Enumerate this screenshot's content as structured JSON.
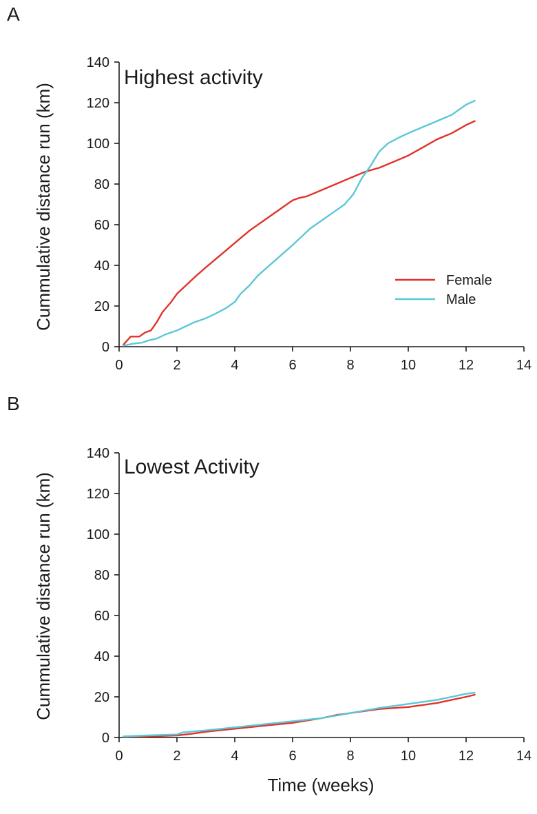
{
  "figure": {
    "xlabel": "Time (weeks)"
  },
  "chart_data": [
    {
      "type": "line",
      "panel": "A",
      "title": "Highest activity",
      "xlabel": "Time (weeks)",
      "ylabel": "Cummulative distance run (km)",
      "xlim": [
        0,
        14
      ],
      "ylim": [
        0,
        140
      ],
      "xticks": [
        0,
        2,
        4,
        6,
        8,
        10,
        12,
        14
      ],
      "yticks": [
        0,
        20,
        40,
        60,
        80,
        100,
        120,
        140
      ],
      "legend_position": "right",
      "grid": false,
      "series": [
        {
          "name": "Female",
          "color": "#e0332a",
          "points": [
            [
              0.15,
              1
            ],
            [
              0.4,
              5
            ],
            [
              0.7,
              5
            ],
            [
              0.9,
              7
            ],
            [
              1.1,
              8
            ],
            [
              1.3,
              12
            ],
            [
              1.5,
              17
            ],
            [
              1.8,
              22
            ],
            [
              2.0,
              26
            ],
            [
              2.3,
              30
            ],
            [
              2.6,
              34
            ],
            [
              3.0,
              39
            ],
            [
              3.5,
              45
            ],
            [
              4.0,
              51
            ],
            [
              4.5,
              57
            ],
            [
              5.0,
              62
            ],
            [
              5.5,
              67
            ],
            [
              6.0,
              72
            ],
            [
              6.2,
              73
            ],
            [
              6.5,
              74
            ],
            [
              7.0,
              77
            ],
            [
              7.5,
              80
            ],
            [
              8.0,
              83
            ],
            [
              8.5,
              86
            ],
            [
              9.0,
              88
            ],
            [
              9.5,
              91
            ],
            [
              10.0,
              94
            ],
            [
              10.5,
              98
            ],
            [
              11.0,
              102
            ],
            [
              11.5,
              105
            ],
            [
              12.0,
              109
            ],
            [
              12.3,
              111
            ]
          ]
        },
        {
          "name": "Male",
          "color": "#5bc7d6",
          "points": [
            [
              0.15,
              0.5
            ],
            [
              0.5,
              1.5
            ],
            [
              0.8,
              2
            ],
            [
              1.0,
              3
            ],
            [
              1.3,
              4
            ],
            [
              1.6,
              6
            ],
            [
              2.0,
              8
            ],
            [
              2.3,
              10
            ],
            [
              2.6,
              12
            ],
            [
              3.0,
              14
            ],
            [
              3.3,
              16
            ],
            [
              3.7,
              19
            ],
            [
              4.0,
              22
            ],
            [
              4.2,
              26
            ],
            [
              4.5,
              30
            ],
            [
              4.8,
              35
            ],
            [
              5.2,
              40
            ],
            [
              5.6,
              45
            ],
            [
              6.0,
              50
            ],
            [
              6.3,
              54
            ],
            [
              6.6,
              58
            ],
            [
              7.0,
              62
            ],
            [
              7.4,
              66
            ],
            [
              7.8,
              70
            ],
            [
              8.1,
              75
            ],
            [
              8.4,
              83
            ],
            [
              8.7,
              89
            ],
            [
              9.0,
              96
            ],
            [
              9.3,
              100
            ],
            [
              9.7,
              103
            ],
            [
              10.0,
              105
            ],
            [
              10.5,
              108
            ],
            [
              11.0,
              111
            ],
            [
              11.5,
              114
            ],
            [
              11.8,
              117
            ],
            [
              12.0,
              119
            ],
            [
              12.3,
              121
            ]
          ]
        }
      ]
    },
    {
      "type": "line",
      "panel": "B",
      "title": "Lowest Activity",
      "xlabel": "Time (weeks)",
      "ylabel": "Cummulative distance run (km)",
      "xlim": [
        0,
        14
      ],
      "ylim": [
        0,
        140
      ],
      "xticks": [
        0,
        2,
        4,
        6,
        8,
        10,
        12,
        14
      ],
      "yticks": [
        0,
        20,
        40,
        60,
        80,
        100,
        120,
        140
      ],
      "grid": false,
      "series": [
        {
          "name": "Female",
          "color": "#e0332a",
          "points": [
            [
              0.15,
              0.3
            ],
            [
              1.0,
              0.5
            ],
            [
              2.0,
              1
            ],
            [
              2.5,
              1.8
            ],
            [
              3.0,
              2.8
            ],
            [
              4.0,
              4.3
            ],
            [
              5.0,
              5.8
            ],
            [
              6.0,
              7.2
            ],
            [
              7.0,
              9.5
            ],
            [
              7.5,
              11
            ],
            [
              8.0,
              12
            ],
            [
              9.0,
              14
            ],
            [
              10.0,
              15
            ],
            [
              11.0,
              17
            ],
            [
              11.5,
              18.5
            ],
            [
              12.0,
              20
            ],
            [
              12.3,
              21
            ]
          ]
        },
        {
          "name": "Male",
          "color": "#5bc7d6",
          "points": [
            [
              0.15,
              0.5
            ],
            [
              1.0,
              1
            ],
            [
              2.0,
              1.5
            ],
            [
              2.2,
              2.5
            ],
            [
              3.0,
              3.5
            ],
            [
              4.0,
              5
            ],
            [
              5.0,
              6.5
            ],
            [
              6.0,
              8
            ],
            [
              7.0,
              9.5
            ],
            [
              8.0,
              12
            ],
            [
              9.0,
              14.5
            ],
            [
              10.0,
              16.5
            ],
            [
              11.0,
              18.5
            ],
            [
              11.5,
              20
            ],
            [
              12.0,
              21.5
            ],
            [
              12.3,
              22
            ]
          ]
        }
      ]
    }
  ]
}
